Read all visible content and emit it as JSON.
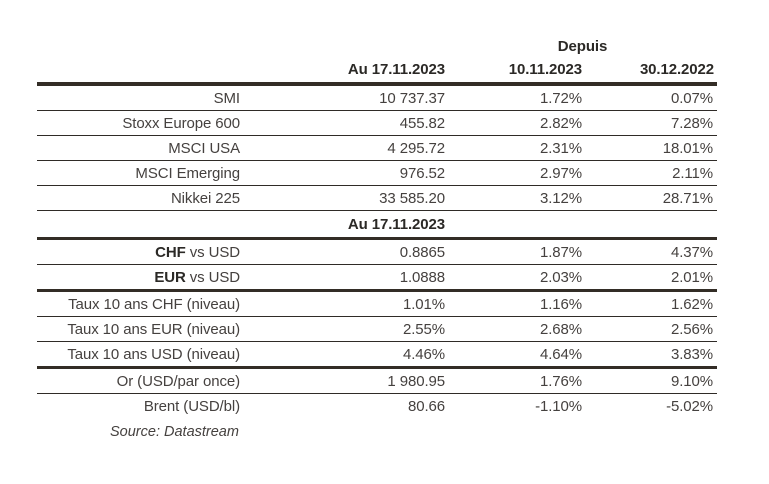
{
  "page": {
    "depuis_label": "Depuis",
    "columns": [
      "Au 17.11.2023",
      "10.11.2023",
      "30.12.2022"
    ],
    "sub_header": "Au 17.11.2023",
    "source": "Source: Datastream",
    "colors": {
      "rule_thick": "#332d26",
      "rule_thin": "#2f2b27",
      "text": "#45413f",
      "heading": "#2b2926",
      "background": "#ffffff"
    },
    "rows": [
      {
        "label": "SMI",
        "v1": "10 737.37",
        "v2": "1.72%",
        "v3": "0.07%"
      },
      {
        "label": "Stoxx Europe 600",
        "v1": "455.82",
        "v2": "2.82%",
        "v3": "7.28%"
      },
      {
        "label": "MSCI USA",
        "v1": "4 295.72",
        "v2": "2.31%",
        "v3": "18.01%"
      },
      {
        "label": "MSCI Emerging",
        "v1": "976.52",
        "v2": "2.97%",
        "v3": "2.11%"
      },
      {
        "label": "Nikkei 225",
        "v1": "33 585.20",
        "v2": "3.12%",
        "v3": "28.71%"
      },
      {
        "label_bold": "CHF",
        "label_rest": " vs USD",
        "v1": "0.8865",
        "v2": "1.87%",
        "v3": "4.37%"
      },
      {
        "label_bold": "EUR",
        "label_rest": " vs USD",
        "v1": "1.0888",
        "v2": "2.03%",
        "v3": "2.01%"
      },
      {
        "label": "Taux 10 ans CHF (niveau)",
        "v1": "1.01%",
        "v2": "1.16%",
        "v3": "1.62%"
      },
      {
        "label": "Taux 10 ans EUR (niveau)",
        "v1": "2.55%",
        "v2": "2.68%",
        "v3": "2.56%"
      },
      {
        "label": "Taux 10 ans USD (niveau)",
        "v1": "4.46%",
        "v2": "4.64%",
        "v3": "3.83%"
      },
      {
        "label": "Or (USD/par once)",
        "v1": "1 980.95",
        "v2": "1.76%",
        "v3": "9.10%"
      },
      {
        "label": "Brent (USD/bl)",
        "v1": "80.66",
        "v2": "-1.10%",
        "v3": "-5.02%"
      }
    ]
  }
}
